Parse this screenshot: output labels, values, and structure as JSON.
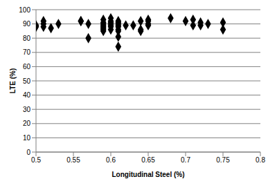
{
  "chart_data": {
    "type": "scatter",
    "x_label": "Longitudinal Steel (%)",
    "y_label": "LTE (%)",
    "x": [
      0.5,
      0.5,
      0.51,
      0.51,
      0.51,
      0.52,
      0.53,
      0.56,
      0.56,
      0.57,
      0.57,
      0.59,
      0.59,
      0.59,
      0.59,
      0.59,
      0.59,
      0.59,
      0.59,
      0.6,
      0.6,
      0.6,
      0.6,
      0.6,
      0.6,
      0.6,
      0.61,
      0.61,
      0.61,
      0.61,
      0.61,
      0.61,
      0.61,
      0.61,
      0.61,
      0.62,
      0.63,
      0.64,
      0.64,
      0.64,
      0.65,
      0.65,
      0.65,
      0.65,
      0.68,
      0.7,
      0.71,
      0.71,
      0.72,
      0.72,
      0.73,
      0.75,
      0.75
    ],
    "values": [
      88,
      89,
      92,
      90,
      88,
      87,
      90,
      92,
      92,
      90,
      80,
      93,
      91,
      90,
      89,
      88,
      87,
      86,
      85,
      94,
      92,
      91,
      90,
      89,
      88,
      86,
      92,
      91,
      90,
      89,
      88,
      86,
      85,
      81,
      74,
      89,
      89,
      92,
      86,
      85,
      93,
      92,
      90,
      89,
      94,
      92,
      93,
      89,
      91,
      89,
      90,
      91,
      86
    ],
    "color": "#000000",
    "marker": "diamond",
    "xlim": [
      0.5,
      0.8
    ],
    "xticks": [
      0.5,
      0.55,
      0.6,
      0.65,
      0.7,
      0.75,
      0.8
    ],
    "ylim": [
      0,
      100
    ],
    "yticks": [
      0,
      10,
      20,
      30,
      40,
      50,
      60,
      70,
      80,
      90,
      100
    ],
    "grid": true
  }
}
